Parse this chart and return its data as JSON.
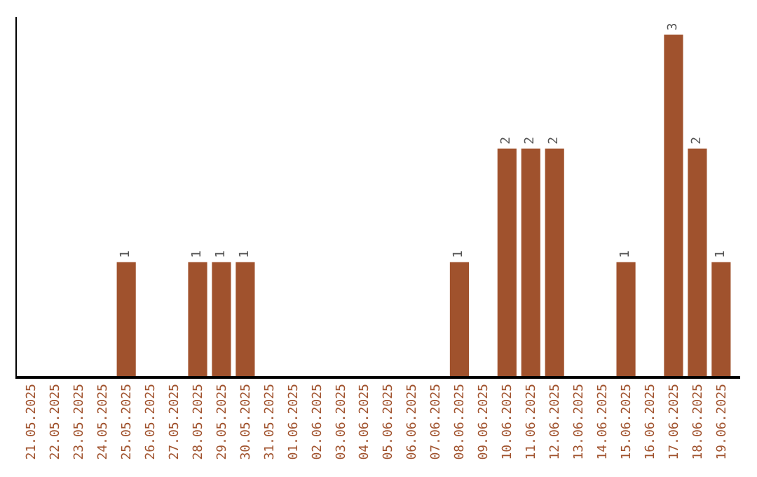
{
  "chart_data": {
    "type": "bar",
    "categories": [
      "21.05.2025",
      "22.05.2025",
      "23.05.2025",
      "24.05.2025",
      "25.05.2025",
      "26.05.2025",
      "27.05.2025",
      "28.05.2025",
      "29.05.2025",
      "30.05.2025",
      "31.05.2025",
      "01.06.2025",
      "02.06.2025",
      "03.06.2025",
      "04.06.2025",
      "05.06.2025",
      "06.06.2025",
      "07.06.2025",
      "08.06.2025",
      "09.06.2025",
      "10.06.2025",
      "11.06.2025",
      "12.06.2025",
      "13.06.2025",
      "14.06.2025",
      "15.06.2025",
      "16.06.2025",
      "17.06.2025",
      "18.06.2025",
      "19.06.2025"
    ],
    "values": [
      0,
      0,
      0,
      0,
      1,
      0,
      0,
      1,
      1,
      1,
      0,
      0,
      0,
      0,
      0,
      0,
      0,
      0,
      1,
      0,
      2,
      2,
      2,
      0,
      0,
      1,
      0,
      3,
      2,
      1
    ],
    "value_labels": [
      null,
      null,
      null,
      null,
      "1",
      null,
      null,
      "1",
      "1",
      "1",
      null,
      null,
      null,
      null,
      null,
      null,
      null,
      null,
      "1",
      null,
      "2",
      "2",
      "2",
      null,
      null,
      "1",
      null,
      "3",
      "2",
      "1"
    ],
    "color": "#a0522d",
    "tick_labels": "x",
    "legend": false
  }
}
